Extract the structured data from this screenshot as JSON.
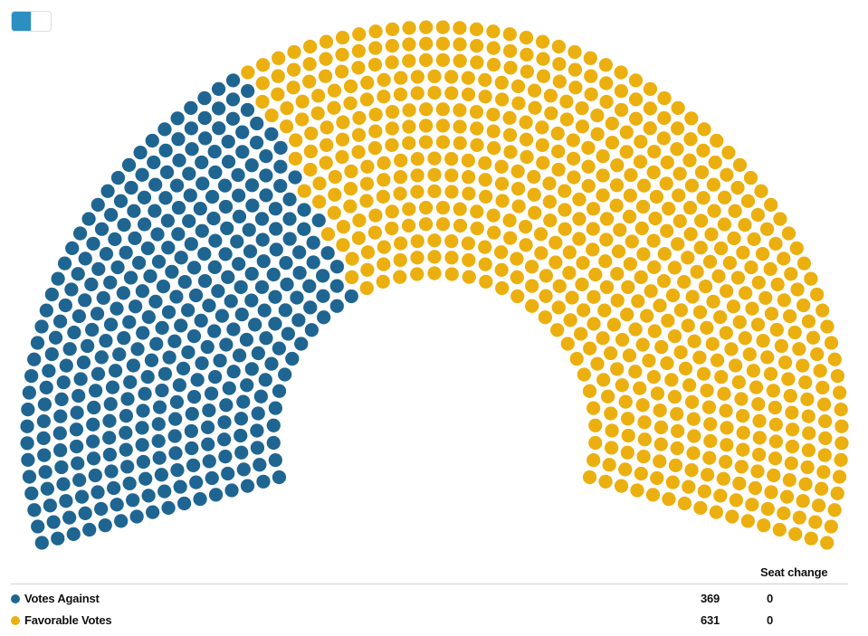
{
  "chart_data": {
    "type": "parliament",
    "title": "",
    "total_seats": 1000,
    "columns": {
      "change": "Seat change"
    },
    "series": [
      {
        "name": "Votes Against",
        "seats": 369,
        "change": "0",
        "color": "#1f6591"
      },
      {
        "name": "Favorable Votes",
        "seats": 631,
        "change": "0",
        "color": "#ebaf0f"
      }
    ]
  },
  "toolbar": {
    "accent": "#2b8fc1"
  }
}
